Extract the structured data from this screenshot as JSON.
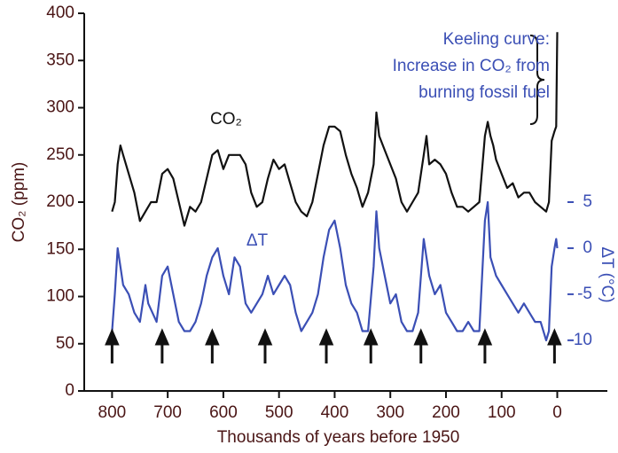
{
  "chart_data": {
    "type": "line",
    "xlabel": "Thousands of years before 1950",
    "ylabel": "CO₂ (ppm)",
    "y2label": "ΔT (°C)",
    "xlim": [
      850,
      -90
    ],
    "ylim": [
      0,
      400
    ],
    "y2lim": [
      -15.5,
      25.5
    ],
    "xticks": [
      800,
      700,
      600,
      500,
      400,
      300,
      200,
      100,
      0
    ],
    "yticks": [
      0,
      50,
      100,
      150,
      200,
      250,
      300,
      350,
      400
    ],
    "y2ticks": [
      5,
      0,
      -5,
      -10
    ],
    "annotations": [
      "CO₂",
      "ΔT",
      "Keeling curve:",
      "Increase in CO₂ from",
      "burning fossil fuel"
    ],
    "arrows_x": [
      800,
      710,
      620,
      525,
      415,
      335,
      245,
      130,
      5
    ],
    "series": [
      {
        "name": "CO₂",
        "color": "#111111",
        "x": [
          800,
          795,
          790,
          785,
          780,
          770,
          760,
          750,
          740,
          730,
          720,
          710,
          700,
          690,
          680,
          670,
          660,
          650,
          640,
          630,
          620,
          610,
          600,
          590,
          580,
          570,
          560,
          550,
          540,
          530,
          520,
          510,
          500,
          490,
          480,
          470,
          460,
          450,
          440,
          430,
          420,
          410,
          400,
          390,
          380,
          370,
          360,
          350,
          340,
          330,
          325,
          320,
          310,
          300,
          290,
          280,
          270,
          260,
          250,
          240,
          235,
          230,
          220,
          210,
          200,
          190,
          180,
          170,
          160,
          150,
          140,
          130,
          125,
          120,
          115,
          110,
          100,
          90,
          80,
          70,
          60,
          50,
          40,
          30,
          20,
          15,
          10,
          5,
          2,
          0
        ],
        "values": [
          190,
          200,
          240,
          260,
          250,
          230,
          210,
          180,
          190,
          200,
          200,
          230,
          235,
          225,
          200,
          175,
          195,
          190,
          200,
          225,
          250,
          255,
          235,
          250,
          250,
          250,
          240,
          210,
          195,
          200,
          225,
          245,
          235,
          240,
          220,
          200,
          190,
          185,
          200,
          230,
          260,
          280,
          280,
          275,
          250,
          230,
          215,
          195,
          210,
          240,
          295,
          270,
          255,
          240,
          225,
          200,
          190,
          200,
          210,
          250,
          270,
          240,
          245,
          240,
          230,
          210,
          195,
          195,
          190,
          195,
          200,
          270,
          285,
          270,
          260,
          245,
          230,
          215,
          220,
          205,
          210,
          210,
          200,
          195,
          190,
          200,
          265,
          275,
          280,
          380
        ]
      },
      {
        "name": "ΔT",
        "color": "#3b4fb5",
        "axis": "y2",
        "x": [
          800,
          795,
          790,
          785,
          780,
          770,
          760,
          750,
          740,
          735,
          720,
          710,
          700,
          690,
          680,
          670,
          660,
          650,
          640,
          630,
          620,
          610,
          600,
          590,
          580,
          570,
          560,
          550,
          540,
          530,
          520,
          510,
          500,
          490,
          480,
          470,
          460,
          450,
          440,
          430,
          420,
          410,
          400,
          390,
          380,
          370,
          360,
          350,
          340,
          330,
          325,
          320,
          310,
          300,
          290,
          280,
          270,
          260,
          250,
          240,
          235,
          230,
          220,
          210,
          200,
          190,
          180,
          170,
          160,
          150,
          140,
          130,
          125,
          120,
          110,
          100,
          90,
          80,
          70,
          60,
          50,
          40,
          30,
          20,
          15,
          10,
          5,
          2,
          0
        ],
        "values": [
          -9,
          -5,
          0,
          -2,
          -4,
          -5,
          -7,
          -8,
          -4,
          -6,
          -8,
          -3,
          -2,
          -5,
          -8,
          -9,
          -9,
          -8,
          -6,
          -3,
          -1,
          0,
          -3,
          -5,
          -1,
          -2,
          -6,
          -7,
          -6,
          -5,
          -3,
          -5,
          -4,
          -3,
          -4,
          -7,
          -9,
          -8,
          -7,
          -5,
          -1,
          2,
          3,
          0,
          -4,
          -6,
          -7,
          -9,
          -9,
          -2,
          4,
          0,
          -3,
          -6,
          -5,
          -8,
          -9,
          -9,
          -7,
          1,
          -1,
          -3,
          -5,
          -4,
          -7,
          -8,
          -9,
          -9,
          -8,
          -9,
          -9,
          3,
          5,
          -1,
          -3,
          -4,
          -5,
          -6,
          -7,
          -6,
          -7,
          -8,
          -8,
          -10,
          -9,
          -2,
          0,
          1,
          0
        ]
      }
    ]
  }
}
